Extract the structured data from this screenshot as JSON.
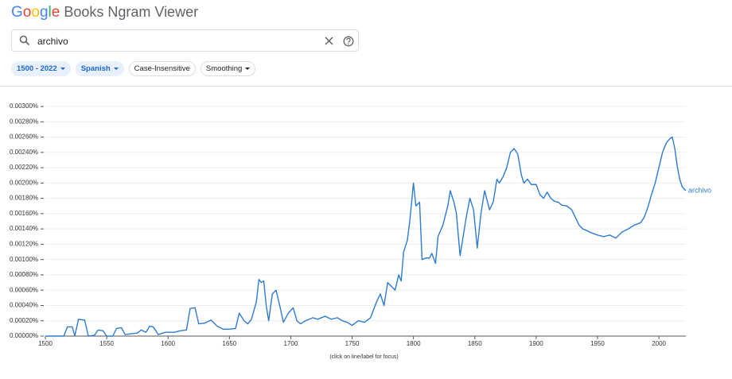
{
  "header": {
    "logo": "Google",
    "title": "Books Ngram Viewer"
  },
  "search": {
    "query": "archivo"
  },
  "filters": [
    {
      "label": "1500 - 2022",
      "selected": true,
      "dropdown": true
    },
    {
      "label": "Spanish",
      "selected": true,
      "dropdown": true
    },
    {
      "label": "Case-Insensitive",
      "selected": false,
      "dropdown": false
    },
    {
      "label": "Smoothing",
      "selected": false,
      "dropdown": true
    }
  ],
  "chart_data": {
    "type": "line",
    "note": "(click on line/label for focus)",
    "xlim": [
      1500,
      2022
    ],
    "xticks": [
      1500,
      1550,
      1600,
      1650,
      1700,
      1750,
      1800,
      1850,
      1900,
      1950,
      2000
    ],
    "ylim": [
      0,
      0.003
    ],
    "yticks": [
      {
        "value": 0,
        "label": "0.00000%"
      },
      {
        "value": 0.0002,
        "label": "0.00020%"
      },
      {
        "value": 0.0004,
        "label": "0.00040%"
      },
      {
        "value": 0.0006,
        "label": "0.00060%"
      },
      {
        "value": 0.0008,
        "label": "0.00080%"
      },
      {
        "value": 0.001,
        "label": "0.00100%"
      },
      {
        "value": 0.0012,
        "label": "0.00120%"
      },
      {
        "value": 0.0014,
        "label": "0.00140%"
      },
      {
        "value": 0.0016,
        "label": "0.00160%"
      },
      {
        "value": 0.0018,
        "label": "0.00180%"
      },
      {
        "value": 0.002,
        "label": "0.00200%"
      },
      {
        "value": 0.0022,
        "label": "0.00220%"
      },
      {
        "value": 0.0024,
        "label": "0.00240%"
      },
      {
        "value": 0.0026,
        "label": "0.00260%"
      },
      {
        "value": 0.0028,
        "label": "0.00280%"
      },
      {
        "value": 0.003,
        "label": "0.00300%"
      }
    ],
    "grid": true,
    "x": [
      1500,
      1505,
      1510,
      1515,
      1518,
      1522,
      1524,
      1527,
      1532,
      1535,
      1540,
      1543,
      1547,
      1550,
      1555,
      1558,
      1562,
      1565,
      1570,
      1575,
      1578,
      1582,
      1585,
      1588,
      1592,
      1598,
      1605,
      1610,
      1615,
      1618,
      1622,
      1625,
      1630,
      1635,
      1640,
      1645,
      1650,
      1655,
      1658,
      1662,
      1665,
      1668,
      1672,
      1674,
      1676,
      1678,
      1680,
      1682,
      1685,
      1688,
      1691,
      1694,
      1698,
      1702,
      1705,
      1708,
      1712,
      1718,
      1722,
      1728,
      1733,
      1738,
      1742,
      1746,
      1750,
      1755,
      1760,
      1765,
      1770,
      1773,
      1776,
      1779,
      1782,
      1785,
      1788,
      1790,
      1792,
      1795,
      1797,
      1800,
      1802,
      1805,
      1807,
      1810,
      1813,
      1815,
      1818,
      1820,
      1824,
      1828,
      1830,
      1833,
      1835,
      1838,
      1840,
      1843,
      1846,
      1849,
      1852,
      1855,
      1858,
      1862,
      1865,
      1868,
      1870,
      1873,
      1876,
      1879,
      1882,
      1885,
      1888,
      1890,
      1893,
      1896,
      1900,
      1903,
      1906,
      1909,
      1912,
      1915,
      1918,
      1921,
      1925,
      1929,
      1932,
      1935,
      1938,
      1941,
      1945,
      1950,
      1955,
      1960,
      1965,
      1970,
      1975,
      1980,
      1985,
      1988,
      1991,
      1994,
      1997,
      2000,
      2003,
      2006,
      2009,
      2011,
      2013,
      2015,
      2017,
      2019,
      2022
    ],
    "series": [
      {
        "name": "archivo",
        "color": "#2d7bd1",
        "values": [
          0,
          0,
          0,
          0,
          0.00012,
          0.00012,
          0,
          0.00022,
          0.00021,
          0,
          1e-05,
          8e-05,
          7e-05,
          0,
          0,
          0.0001,
          0.00011,
          2e-05,
          3e-05,
          4e-05,
          8e-05,
          5e-05,
          0.00013,
          0.00012,
          2e-05,
          5e-05,
          5e-05,
          7e-05,
          8e-05,
          0.00036,
          0.00037,
          0.00016,
          0.00017,
          0.00021,
          0.00013,
          9e-05,
          9e-05,
          0.0001,
          0.0003,
          0.0002,
          0.00016,
          0.00022,
          0.00045,
          0.00074,
          0.0007,
          0.00072,
          0.0004,
          0.0002,
          0.00055,
          0.0006,
          0.0004,
          0.00018,
          0.0003,
          0.00037,
          0.0002,
          0.00016,
          0.0002,
          0.00024,
          0.00022,
          0.00026,
          0.00022,
          0.00024,
          0.0002,
          0.00018,
          0.00014,
          0.0002,
          0.00018,
          0.00024,
          0.00045,
          0.00055,
          0.0004,
          0.0007,
          0.00065,
          0.0006,
          0.0008,
          0.00072,
          0.0011,
          0.00125,
          0.0015,
          0.002,
          0.0017,
          0.00175,
          0.001,
          0.00102,
          0.00102,
          0.00108,
          0.00095,
          0.0013,
          0.00145,
          0.0017,
          0.0019,
          0.00175,
          0.0016,
          0.00105,
          0.00125,
          0.00155,
          0.0018,
          0.00165,
          0.00115,
          0.0016,
          0.0019,
          0.00165,
          0.00175,
          0.00205,
          0.002,
          0.00208,
          0.0022,
          0.0024,
          0.00245,
          0.00238,
          0.0021,
          0.002,
          0.00205,
          0.00198,
          0.00198,
          0.00185,
          0.0018,
          0.00188,
          0.0018,
          0.00176,
          0.00175,
          0.00171,
          0.0017,
          0.00165,
          0.00155,
          0.00145,
          0.0014,
          0.00138,
          0.00135,
          0.00132,
          0.0013,
          0.00132,
          0.00128,
          0.00136,
          0.0014,
          0.00145,
          0.00148,
          0.00155,
          0.00168,
          0.00185,
          0.002,
          0.0022,
          0.0024,
          0.00252,
          0.00258,
          0.0026,
          0.00245,
          0.00222,
          0.00205,
          0.00195,
          0.0019
        ]
      }
    ]
  }
}
